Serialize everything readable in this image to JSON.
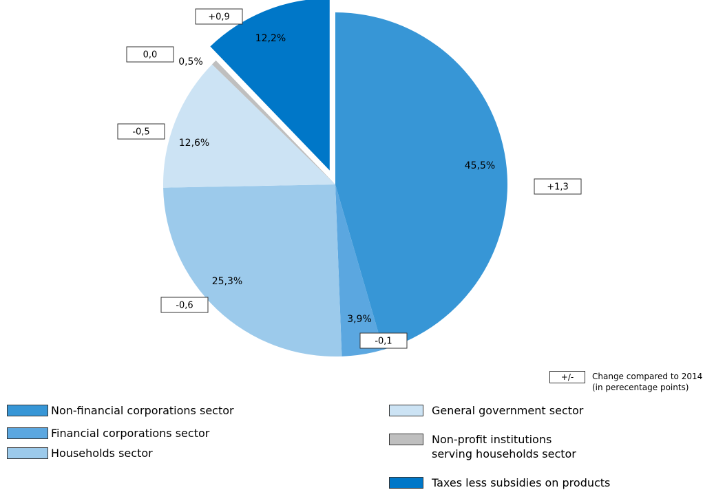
{
  "chart_data": {
    "type": "pie",
    "categories": [
      "Non-financial corporations sector",
      "Financial corporations sector",
      "Households sector",
      "General government sector",
      "Non-profit institutions serving households sector",
      "Taxes less subsidies on products"
    ],
    "values": [
      45.5,
      3.9,
      25.3,
      12.6,
      0.5,
      12.2
    ],
    "value_labels": [
      "45,5%",
      "3,9%",
      "25,3%",
      "12,6%",
      "0,5%",
      "12,2%"
    ],
    "colors": [
      "#3796d6",
      "#5ba7e0",
      "#9ccaeb",
      "#cce3f4",
      "#bfbfbf",
      "#0077c8"
    ],
    "changes": [
      1.3,
      -0.1,
      -0.6,
      -0.5,
      0.0,
      0.9
    ],
    "change_labels": [
      "+1,3",
      "-0,1",
      "-0,6",
      "-0,5",
      "0,0",
      "+0,9"
    ],
    "exploded": [
      false,
      false,
      false,
      false,
      false,
      true
    ],
    "legend_note": {
      "symbol": "+/-",
      "lines": [
        "Change compared to 2014",
        "(in perecentage points)"
      ]
    }
  }
}
